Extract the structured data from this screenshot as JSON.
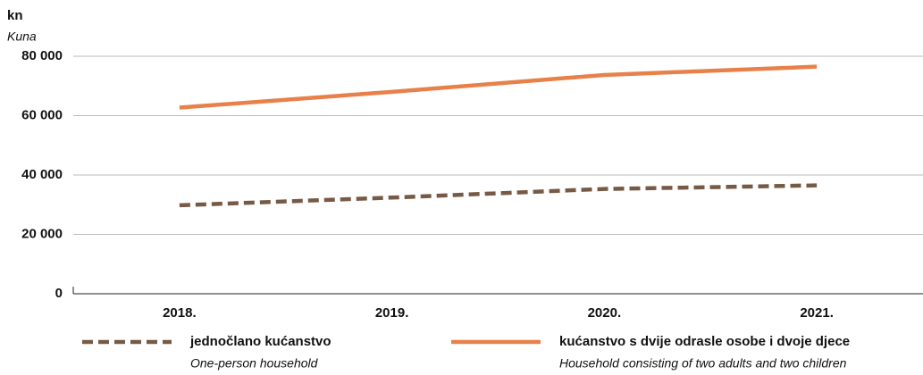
{
  "chart_data": {
    "type": "line",
    "y_label": "kn",
    "y_sublabel": "Kuna",
    "categories": [
      "2018.",
      "2019.",
      "2020.",
      "2021."
    ],
    "series": [
      {
        "name": "jednočlano kućanstvo",
        "subname": "One-person household",
        "color": "#765a45",
        "dashed": true,
        "values": [
          29800,
          32400,
          35300,
          36500
        ]
      },
      {
        "name": "kućanstvo s dvije odrasle osobe i dvoje djece",
        "subname": "Household consisting of two adults and two children",
        "color": "#e8804a",
        "dashed": false,
        "values": [
          62700,
          68000,
          73700,
          76500
        ]
      }
    ],
    "ylim": [
      0,
      80000
    ],
    "yticks": [
      0,
      {
        "value": 20000,
        "label": "20 000"
      },
      {
        "value": 40000,
        "label": "40 000"
      },
      {
        "value": 60000,
        "label": "60 000"
      },
      {
        "value": 80000,
        "label": "80 000"
      }
    ],
    "grid": true
  }
}
